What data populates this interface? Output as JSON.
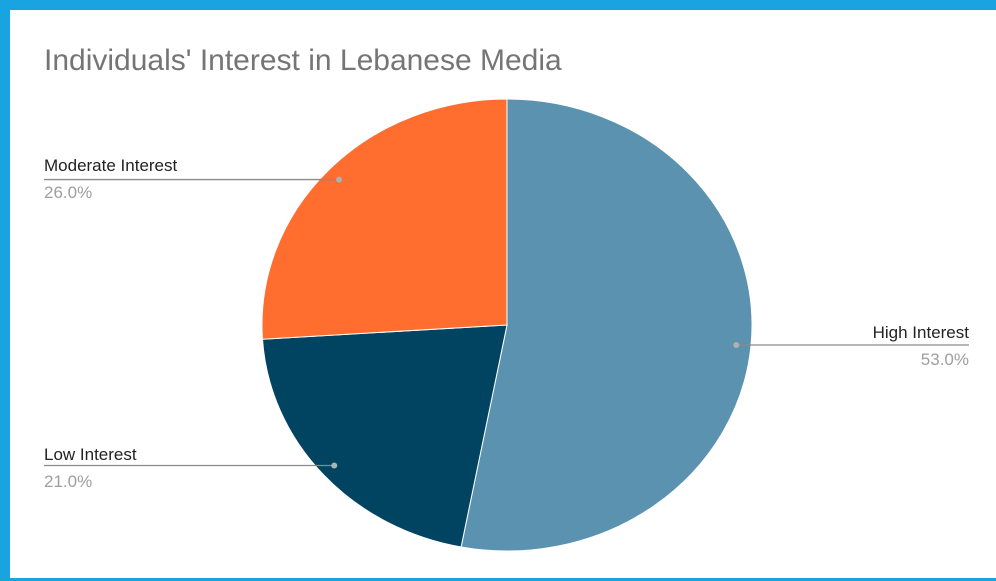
{
  "chart_data": {
    "type": "pie",
    "title": "Individuals' Interest in Lebanese Media",
    "slices": [
      {
        "label": "High Interest",
        "value": 53.0,
        "percent_label": "53.0%",
        "color": "#5a92b0"
      },
      {
        "label": "Low Interest",
        "value": 21.0,
        "percent_label": "21.0%",
        "color": "#004462"
      },
      {
        "label": "Moderate Interest",
        "value": 26.0,
        "percent_label": "26.0%",
        "color": "#ff6d2f"
      }
    ],
    "legend": "callout-labels",
    "frame_color": "#1aa3e1"
  }
}
